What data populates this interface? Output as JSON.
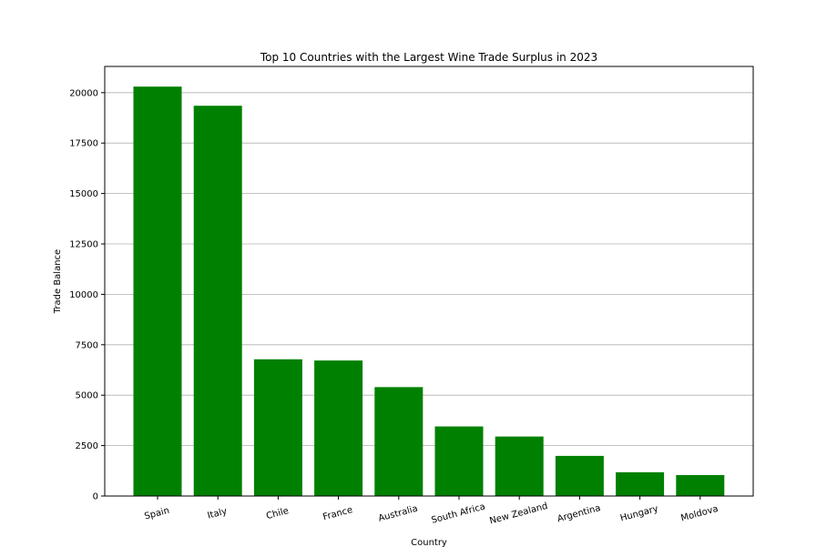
{
  "chart_data": {
    "type": "bar",
    "title": "Top 10 Countries with the Largest Wine Trade Surplus in 2023",
    "xlabel": "Country",
    "ylabel": "Trade Balance",
    "categories": [
      "Spain",
      "Italy",
      "Chile",
      "France",
      "Australia",
      "South Africa",
      "New Zealand",
      "Argentina",
      "Hungary",
      "Moldova"
    ],
    "values": [
      20300,
      19350,
      6780,
      6720,
      5400,
      3450,
      2950,
      1990,
      1180,
      1040
    ],
    "ylim": [
      0,
      21300
    ],
    "yticks": [
      0,
      2500,
      5000,
      7500,
      10000,
      12500,
      15000,
      17500,
      20000
    ],
    "ytick_labels": [
      "0",
      "2500",
      "5000",
      "7500",
      "10000",
      "12500",
      "15000",
      "17500",
      "20000"
    ],
    "grid": "y",
    "bar_color": "#008000",
    "xtick_rotation": -15
  }
}
